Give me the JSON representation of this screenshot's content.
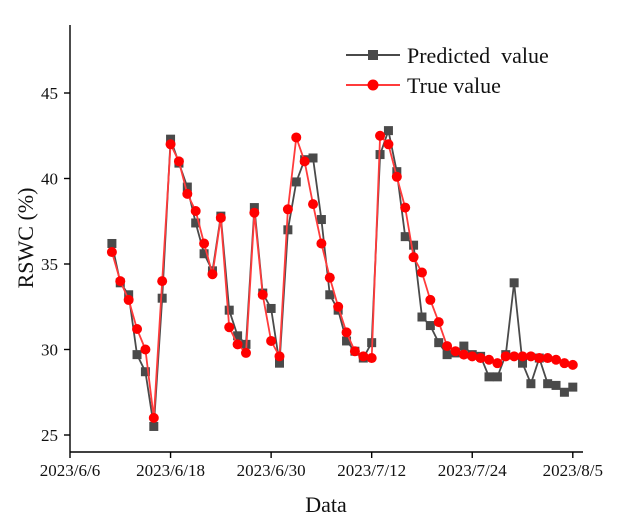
{
  "chart_data": {
    "type": "line",
    "title": "",
    "xlabel": "Data",
    "ylabel": "RSWC (%)",
    "ylim": [
      24,
      49
    ],
    "xlim": [
      "2023/6/6",
      "2023/8/6"
    ],
    "yticks": [
      25,
      30,
      35,
      40,
      45
    ],
    "xticks": [
      "2023/6/6",
      "2023/6/18",
      "2023/6/30",
      "2023/7/12",
      "2023/7/24",
      "2023/8/5"
    ],
    "xtick_day_offsets": [
      0,
      12,
      24,
      36,
      48,
      60
    ],
    "grid": false,
    "legend_position": "top-right",
    "x_start_date": "2023/6/11",
    "x_start_day_offset": 5,
    "x": [
      "6/11",
      "6/12",
      "6/13",
      "6/14",
      "6/15",
      "6/16",
      "6/17",
      "6/18",
      "6/19",
      "6/20",
      "6/21",
      "6/22",
      "6/23",
      "6/24",
      "6/25",
      "6/26",
      "6/27",
      "6/28",
      "6/29",
      "6/30",
      "7/1",
      "7/2",
      "7/3",
      "7/4",
      "7/5",
      "7/6",
      "7/7",
      "7/8",
      "7/9",
      "7/10",
      "7/11",
      "7/12",
      "7/13",
      "7/14",
      "7/15",
      "7/16",
      "7/17",
      "7/18",
      "7/19",
      "7/20",
      "7/21",
      "7/22",
      "7/23",
      "7/24",
      "7/25",
      "7/26",
      "7/27",
      "7/28",
      "7/29",
      "7/30",
      "7/31",
      "8/1",
      "8/2",
      "8/3",
      "8/4",
      "8/5"
    ],
    "series": [
      {
        "name": "Predicted  value",
        "color": "#4a4a4a",
        "marker": "square",
        "values": [
          36.2,
          33.9,
          33.2,
          29.7,
          28.7,
          25.5,
          33.0,
          42.3,
          40.9,
          39.5,
          37.4,
          35.6,
          34.6,
          37.8,
          32.3,
          30.8,
          30.3,
          38.3,
          33.3,
          32.4,
          29.2,
          37.0,
          39.8,
          41.1,
          41.2,
          37.6,
          33.2,
          32.3,
          30.5,
          29.9,
          29.5,
          30.4,
          41.4,
          42.8,
          40.4,
          36.6,
          36.1,
          31.9,
          31.4,
          30.4,
          29.7,
          29.8,
          30.2,
          29.7,
          29.6,
          28.4,
          28.4,
          29.7,
          33.9,
          29.2,
          28.0,
          29.5,
          28.0,
          27.9,
          27.5,
          27.8
        ]
      },
      {
        "name": "True value",
        "color": "#ff0000",
        "marker": "circle",
        "values": [
          35.7,
          34.0,
          32.9,
          31.2,
          30.0,
          26.0,
          34.0,
          42.0,
          41.0,
          39.1,
          38.1,
          36.2,
          34.4,
          37.7,
          31.3,
          30.3,
          29.8,
          38.0,
          33.2,
          30.5,
          29.6,
          38.2,
          42.4,
          41.0,
          38.5,
          36.2,
          34.2,
          32.5,
          31.0,
          29.9,
          29.6,
          29.5,
          42.5,
          42.0,
          40.1,
          38.3,
          35.4,
          34.5,
          32.9,
          31.6,
          30.2,
          29.9,
          29.7,
          29.6,
          29.5,
          29.4,
          29.2,
          29.6,
          29.6,
          29.6,
          29.6,
          29.5,
          29.5,
          29.4,
          29.2,
          29.1
        ]
      }
    ]
  }
}
